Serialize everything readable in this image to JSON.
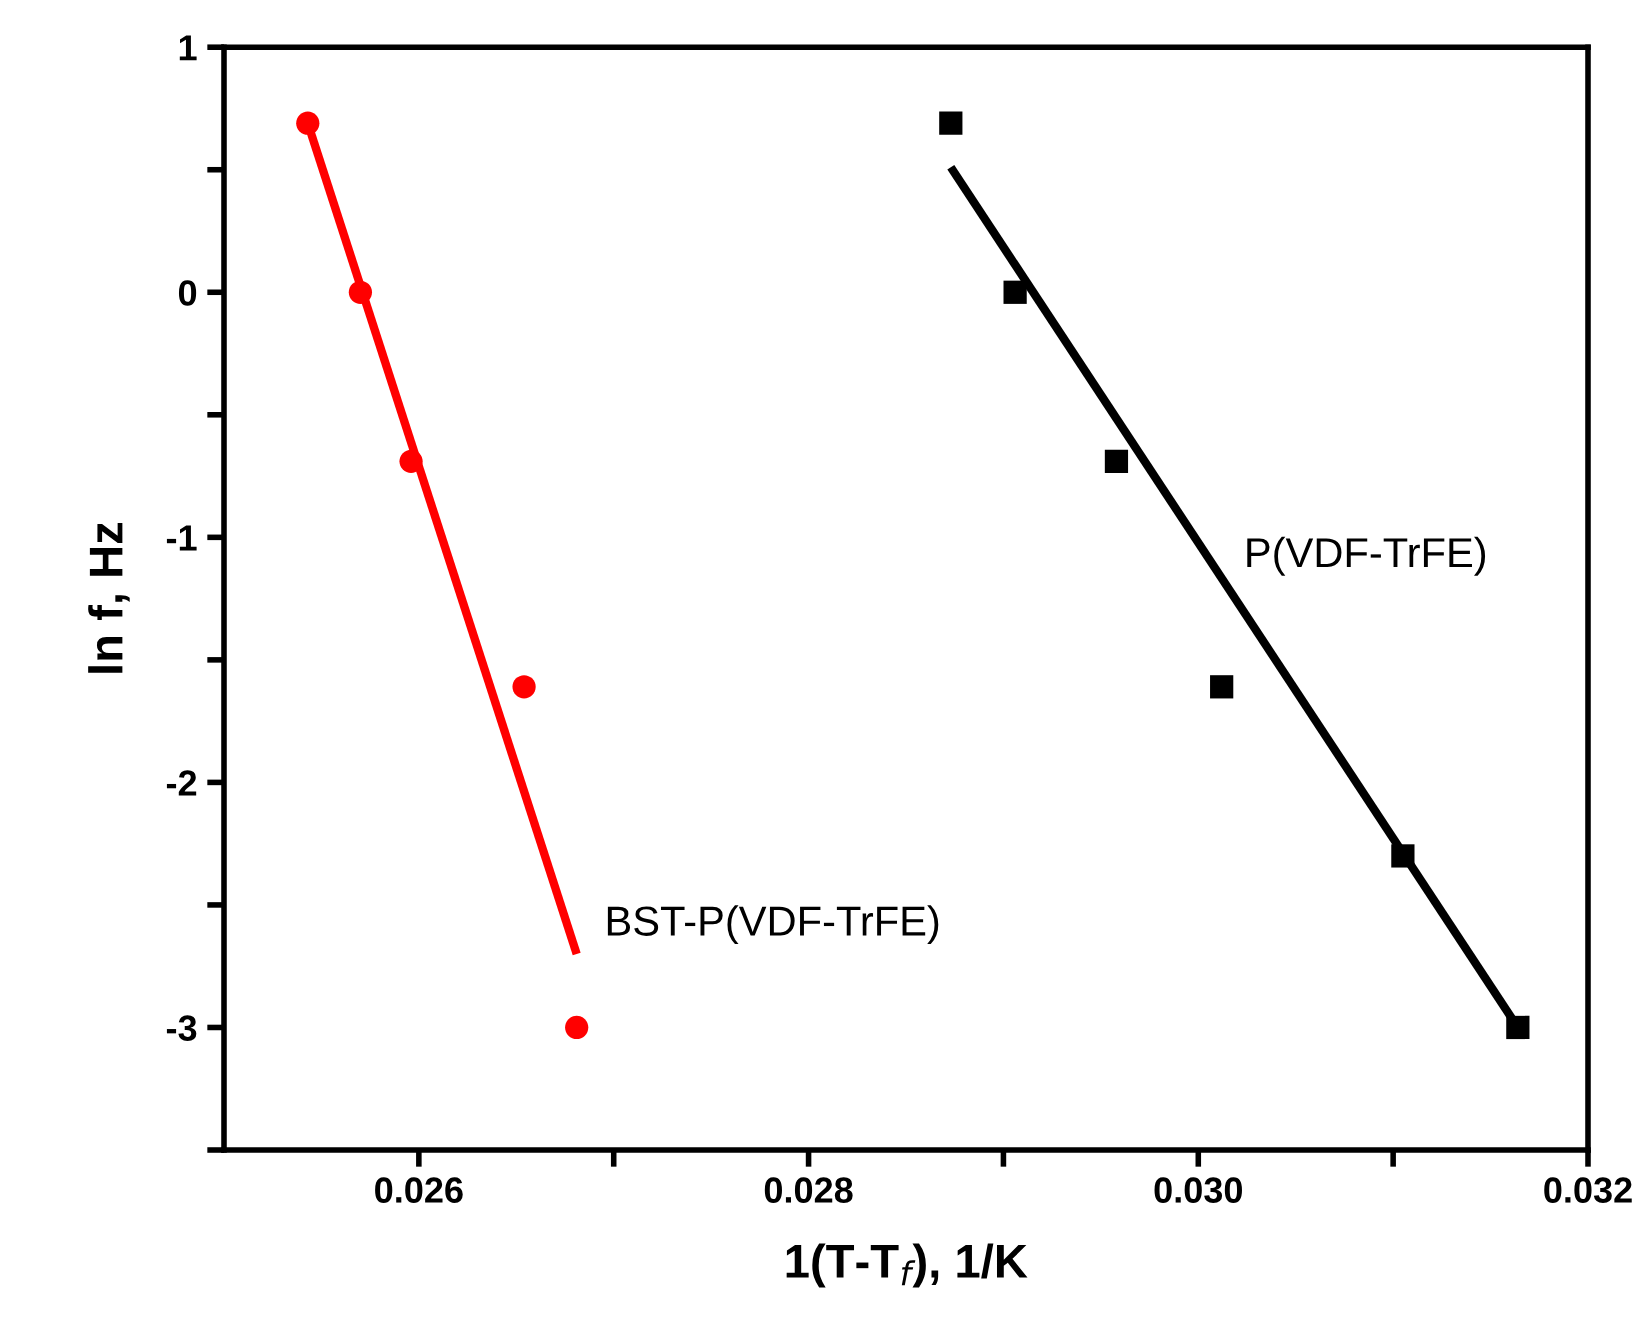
{
  "chart_data": {
    "type": "scatter",
    "xlabel": "1(T-T$_{f}$), 1/K",
    "ylabel": "ln f, Hz",
    "xlim": [
      0.025,
      0.032
    ],
    "xticks": [
      {
        "value": 0.026,
        "label": "0.026"
      },
      {
        "value": 0.027,
        "label": null
      },
      {
        "value": 0.028,
        "label": "0.028"
      },
      {
        "value": 0.029,
        "label": null
      },
      {
        "value": 0.03,
        "label": "0.030"
      },
      {
        "value": 0.031,
        "label": null
      },
      {
        "value": 0.032,
        "label": "0.032"
      }
    ],
    "ylim": [
      -3.5,
      1
    ],
    "yticks": [
      {
        "value": -3.5,
        "label": null
      },
      -3,
      {
        "value": -2.5,
        "label": null
      },
      -2,
      {
        "value": -1.5,
        "label": null
      },
      -1,
      {
        "value": -0.5,
        "label": null
      },
      0,
      {
        "value": 0.5,
        "label": null
      },
      1
    ],
    "grid": false,
    "legend": false,
    "series": [
      {
        "name": "BST-P(VDF-TrFE)",
        "marker": "circle",
        "color": "#ff0000",
        "x": [
          0.02543,
          0.0257,
          0.02596,
          0.02654,
          0.02681
        ],
        "values": [
          0.69,
          0.0,
          -0.69,
          -1.61,
          -3.0
        ]
      },
      {
        "type": "line",
        "color": "#ff0000",
        "x": [
          0.02543,
          0.02681
        ],
        "values": [
          0.69,
          -2.7
        ]
      },
      {
        "name": "P(VDF-TrFE)",
        "marker": "square",
        "color": "#000000",
        "x": [
          0.02873,
          0.02906,
          0.02958,
          0.03012,
          0.03105,
          0.03164
        ],
        "values": [
          0.69,
          0.0,
          -0.69,
          -1.61,
          -2.3,
          -3.0
        ]
      },
      {
        "type": "line",
        "color": "#000000",
        "x": [
          0.02873,
          0.03164
        ],
        "values": [
          0.51,
          -3.0
        ]
      }
    ]
  }
}
